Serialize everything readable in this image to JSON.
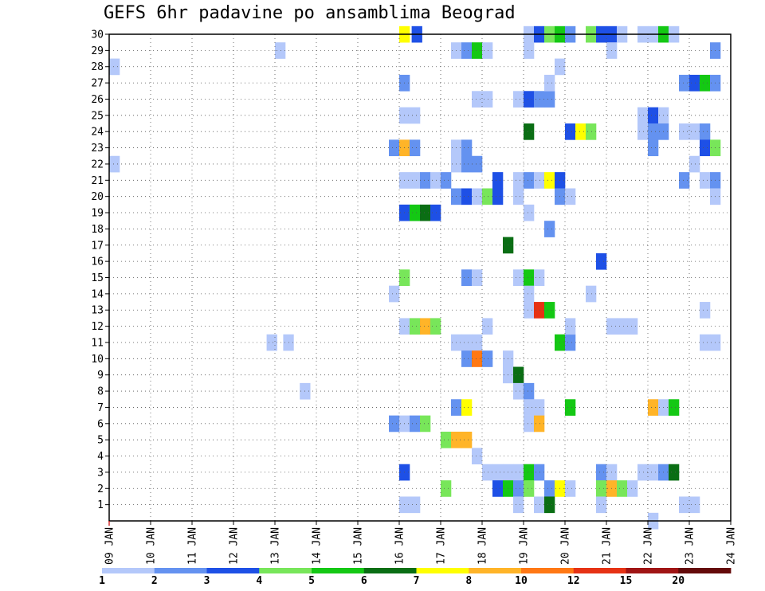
{
  "chart_data": {
    "type": "heatmap",
    "title": "GEFS 6hr padavine po ansamblima Beograd",
    "x_labels": [
      "09 JAN",
      "10 JAN",
      "11 JAN",
      "12 JAN",
      "13 JAN",
      "14 JAN",
      "15 JAN",
      "16 JAN",
      "17 JAN",
      "18 JAN",
      "19 JAN",
      "20 JAN",
      "21 JAN",
      "22 JAN",
      "23 JAN",
      "24 JAN"
    ],
    "x_range_days": [
      9,
      24
    ],
    "steps_per_day": 4,
    "y_labels": [
      "1",
      "2",
      "3",
      "4",
      "5",
      "6",
      "7",
      "8",
      "9",
      "10",
      "11",
      "12",
      "13",
      "14",
      "15",
      "16",
      "17",
      "18",
      "19",
      "20",
      "21",
      "22",
      "23",
      "24",
      "25",
      "26",
      "27",
      "28",
      "29",
      "30"
    ],
    "grid": true,
    "colorbar": {
      "labels": [
        "1",
        "2",
        "3",
        "4",
        "5",
        "6",
        "7",
        "8",
        "10",
        "12",
        "15",
        "20"
      ],
      "colors": [
        "#b4c8fa",
        "#6492f0",
        "#1e50e6",
        "#78e65a",
        "#14c814",
        "#0a6e14",
        "#ffff00",
        "#ffb428",
        "#ff7814",
        "#e63214",
        "#a01414",
        "#640a0a"
      ]
    },
    "cells": [
      [
        9.0,
        28,
        1
      ],
      [
        9.0,
        22,
        1
      ],
      [
        13.0,
        29,
        1
      ],
      [
        12.8,
        11,
        1
      ],
      [
        13.2,
        11,
        1
      ],
      [
        13.6,
        8,
        1
      ],
      [
        16.0,
        30,
        7
      ],
      [
        16.3,
        30,
        3
      ],
      [
        15.75,
        14,
        1
      ],
      [
        16.0,
        27,
        2
      ],
      [
        16.0,
        25,
        1
      ],
      [
        16.25,
        25,
        1
      ],
      [
        15.75,
        23,
        2
      ],
      [
        16.0,
        23,
        8
      ],
      [
        16.25,
        23,
        2
      ],
      [
        16.0,
        21,
        1
      ],
      [
        16.25,
        21,
        1
      ],
      [
        16.5,
        21,
        2
      ],
      [
        16.75,
        21,
        1
      ],
      [
        17.0,
        21,
        2
      ],
      [
        16.0,
        19,
        3
      ],
      [
        16.25,
        19,
        5
      ],
      [
        16.5,
        19,
        6
      ],
      [
        16.75,
        19,
        3
      ],
      [
        16.0,
        15,
        4
      ],
      [
        16.0,
        12,
        1
      ],
      [
        16.25,
        12,
        4
      ],
      [
        16.5,
        12,
        8
      ],
      [
        16.75,
        12,
        4
      ],
      [
        15.75,
        6,
        2
      ],
      [
        16.0,
        6,
        1
      ],
      [
        16.25,
        6,
        2
      ],
      [
        16.5,
        6,
        4
      ],
      [
        16.0,
        3,
        3
      ],
      [
        16.0,
        1,
        1
      ],
      [
        16.25,
        1,
        1
      ],
      [
        17.0,
        5,
        4
      ],
      [
        17.25,
        5,
        8
      ],
      [
        17.5,
        5,
        8
      ],
      [
        17.0,
        2,
        4
      ],
      [
        17.25,
        29,
        1
      ],
      [
        17.5,
        29,
        2
      ],
      [
        17.75,
        29,
        5
      ],
      [
        18.0,
        29,
        1
      ],
      [
        17.75,
        26,
        1
      ],
      [
        18.0,
        26,
        1
      ],
      [
        17.25,
        23,
        1
      ],
      [
        17.5,
        23,
        2
      ],
      [
        17.25,
        22,
        1
      ],
      [
        17.5,
        22,
        2
      ],
      [
        17.75,
        22,
        2
      ],
      [
        17.25,
        20,
        2
      ],
      [
        17.5,
        20,
        3
      ],
      [
        17.75,
        20,
        1
      ],
      [
        18.0,
        20,
        4
      ],
      [
        18.25,
        20,
        3
      ],
      [
        18.25,
        21,
        3
      ],
      [
        17.25,
        11,
        1
      ],
      [
        17.5,
        11,
        1
      ],
      [
        17.75,
        11,
        1
      ],
      [
        17.5,
        10,
        2
      ],
      [
        17.75,
        10,
        9
      ],
      [
        18.0,
        10,
        2
      ],
      [
        17.75,
        4,
        1
      ],
      [
        17.25,
        7,
        2
      ],
      [
        17.5,
        7,
        7
      ],
      [
        18.0,
        12,
        1
      ],
      [
        17.5,
        15,
        2
      ],
      [
        17.75,
        15,
        1
      ],
      [
        18.5,
        17,
        6
      ],
      [
        18.0,
        3,
        1
      ],
      [
        18.25,
        3,
        1
      ],
      [
        18.5,
        3,
        1
      ],
      [
        18.75,
        3,
        1
      ],
      [
        18.25,
        2,
        3
      ],
      [
        18.5,
        2,
        5
      ],
      [
        18.75,
        2,
        2
      ],
      [
        18.5,
        10,
        1
      ],
      [
        18.5,
        9,
        1
      ],
      [
        18.75,
        9,
        6
      ],
      [
        18.75,
        8,
        1
      ],
      [
        19.0,
        8,
        2
      ],
      [
        18.75,
        1,
        1
      ],
      [
        18.75,
        26,
        1
      ],
      [
        19.0,
        26,
        3
      ],
      [
        19.25,
        26,
        2
      ],
      [
        19.5,
        26,
        2
      ],
      [
        19.0,
        30,
        1
      ],
      [
        19.25,
        30,
        3
      ],
      [
        19.5,
        30,
        4
      ],
      [
        19.75,
        30,
        5
      ],
      [
        20.0,
        30,
        2
      ],
      [
        19.0,
        29,
        1
      ],
      [
        19.5,
        27,
        1
      ],
      [
        19.75,
        28,
        1
      ],
      [
        19.0,
        24,
        6
      ],
      [
        18.75,
        21,
        1
      ],
      [
        19.0,
        21,
        2
      ],
      [
        19.25,
        21,
        1
      ],
      [
        19.5,
        21,
        7
      ],
      [
        19.75,
        21,
        3
      ],
      [
        18.75,
        20,
        1
      ],
      [
        19.75,
        20,
        2
      ],
      [
        20.0,
        20,
        1
      ],
      [
        19.0,
        19,
        1
      ],
      [
        19.5,
        18,
        2
      ],
      [
        18.75,
        15,
        1
      ],
      [
        19.0,
        15,
        5
      ],
      [
        19.25,
        15,
        1
      ],
      [
        19.0,
        14,
        1
      ],
      [
        19.0,
        13,
        1
      ],
      [
        19.25,
        13,
        10
      ],
      [
        19.5,
        13,
        5
      ],
      [
        19.75,
        11,
        5
      ],
      [
        20.0,
        11,
        2
      ],
      [
        19.0,
        7,
        1
      ],
      [
        19.25,
        7,
        1
      ],
      [
        19.0,
        6,
        1
      ],
      [
        19.25,
        6,
        8
      ],
      [
        19.0,
        3,
        5
      ],
      [
        19.25,
        3,
        2
      ],
      [
        19.0,
        2,
        4
      ],
      [
        19.5,
        2,
        2
      ],
      [
        19.75,
        2,
        7
      ],
      [
        20.0,
        2,
        1
      ],
      [
        19.25,
        1,
        1
      ],
      [
        19.5,
        1,
        6
      ],
      [
        20.0,
        12,
        1
      ],
      [
        20.0,
        7,
        5
      ],
      [
        20.5,
        30,
        4
      ],
      [
        20.75,
        30,
        3
      ],
      [
        21.0,
        30,
        3
      ],
      [
        21.25,
        30,
        1
      ],
      [
        21.0,
        29,
        1
      ],
      [
        20.0,
        24,
        3
      ],
      [
        20.25,
        24,
        7
      ],
      [
        20.5,
        24,
        4
      ],
      [
        20.75,
        16,
        3
      ],
      [
        20.5,
        14,
        1
      ],
      [
        21.0,
        12,
        1
      ],
      [
        21.25,
        12,
        1
      ],
      [
        21.5,
        12,
        1
      ],
      [
        20.75,
        3,
        2
      ],
      [
        21.0,
        3,
        1
      ],
      [
        20.75,
        2,
        4
      ],
      [
        21.0,
        2,
        8
      ],
      [
        21.25,
        2,
        4
      ],
      [
        21.5,
        2,
        1
      ],
      [
        20.75,
        1,
        1
      ],
      [
        21.75,
        30,
        1
      ],
      [
        22.0,
        30,
        1
      ],
      [
        22.25,
        30,
        5
      ],
      [
        22.5,
        30,
        1
      ],
      [
        21.75,
        25,
        1
      ],
      [
        22.0,
        25,
        3
      ],
      [
        22.25,
        25,
        1
      ],
      [
        21.75,
        24,
        1
      ],
      [
        22.0,
        24,
        2
      ],
      [
        22.25,
        24,
        2
      ],
      [
        22.0,
        23,
        2
      ],
      [
        22.0,
        7,
        8
      ],
      [
        22.25,
        7,
        1
      ],
      [
        22.5,
        7,
        5
      ],
      [
        21.75,
        3,
        1
      ],
      [
        22.0,
        3,
        1
      ],
      [
        22.25,
        3,
        2
      ],
      [
        22.5,
        3,
        6
      ],
      [
        22.0,
        0,
        1
      ],
      [
        22.75,
        27,
        2
      ],
      [
        23.0,
        27,
        3
      ],
      [
        23.25,
        27,
        5
      ],
      [
        23.5,
        27,
        2
      ],
      [
        23.5,
        29,
        2
      ],
      [
        22.75,
        24,
        1
      ],
      [
        23.0,
        24,
        1
      ],
      [
        23.25,
        24,
        2
      ],
      [
        23.25,
        23,
        3
      ],
      [
        23.5,
        23,
        4
      ],
      [
        23.0,
        22,
        1
      ],
      [
        22.75,
        21,
        2
      ],
      [
        23.25,
        21,
        1
      ],
      [
        23.5,
        21,
        2
      ],
      [
        23.5,
        20,
        1
      ],
      [
        23.25,
        13,
        1
      ],
      [
        23.25,
        11,
        1
      ],
      [
        23.5,
        11,
        1
      ],
      [
        22.75,
        1,
        1
      ],
      [
        23.0,
        1,
        1
      ]
    ]
  }
}
